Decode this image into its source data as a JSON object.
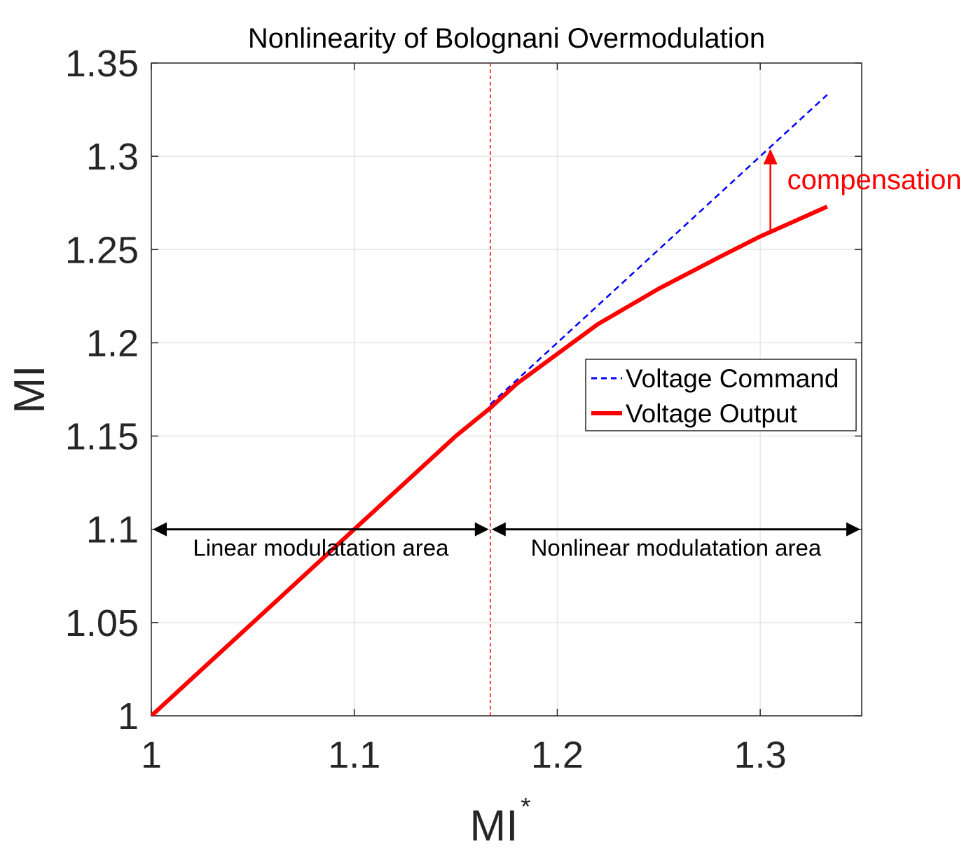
{
  "chart_data": {
    "type": "line",
    "title": "Nonlinearity of Bolognani Overmodulation",
    "xlabel": "MI",
    "xlabel_superscript": "*",
    "ylabel": "MI",
    "xlim": [
      1.0,
      1.35
    ],
    "ylim": [
      1.0,
      1.35
    ],
    "xticks": [
      1.0,
      1.1,
      1.2,
      1.3
    ],
    "xtick_labels": [
      "1",
      "1.1",
      "1.2",
      "1.3"
    ],
    "yticks": [
      1.0,
      1.05,
      1.1,
      1.15,
      1.2,
      1.25,
      1.3,
      1.35
    ],
    "ytick_labels": [
      "1",
      "1.05",
      "1.1",
      "1.15",
      "1.2",
      "1.25",
      "1.3",
      "1.35"
    ],
    "grid": true,
    "series": [
      {
        "name": "Voltage Command",
        "style": "dashed",
        "color": "#0000ff",
        "x": [
          1.167,
          1.333
        ],
        "y": [
          1.167,
          1.333
        ]
      },
      {
        "name": "Voltage Output",
        "style": "solid",
        "color": "#ff0000",
        "x": [
          1.0,
          1.05,
          1.1,
          1.15,
          1.167,
          1.18,
          1.2,
          1.22,
          1.25,
          1.28,
          1.3,
          1.333
        ],
        "y": [
          1.0,
          1.05,
          1.1,
          1.15,
          1.165,
          1.178,
          1.194,
          1.21,
          1.229,
          1.246,
          1.257,
          1.273
        ]
      }
    ],
    "legend": {
      "position": "center-right",
      "entries": [
        "Voltage Command",
        "Voltage Output"
      ]
    },
    "vline": {
      "x": 1.167,
      "color": "#ff0000",
      "style": "dashed"
    },
    "annotations": {
      "linear_region": {
        "label": "Linear modulatation area",
        "x_from": 1.0,
        "x_to": 1.167,
        "y": 1.1
      },
      "nonlinear_region": {
        "label": "Nonlinear modulatation area",
        "x_from": 1.167,
        "x_to": 1.35,
        "y": 1.1
      },
      "compensation": {
        "label": "compensation",
        "x": 1.305,
        "y_from": 1.259,
        "y_to": 1.304,
        "color": "#ff0000"
      }
    }
  }
}
